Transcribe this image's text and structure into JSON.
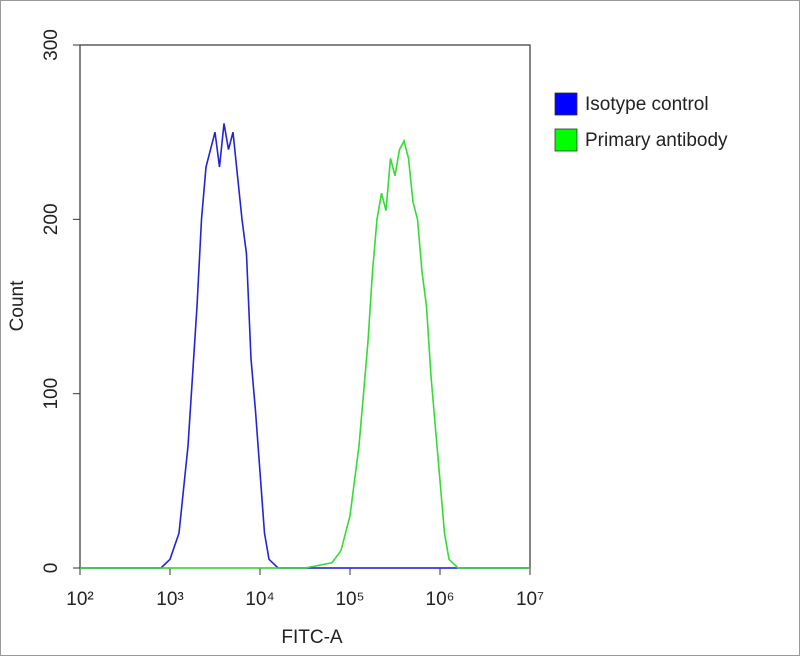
{
  "chart_data": {
    "type": "line",
    "x_label": "FITC-A",
    "y_label": "Count",
    "xscale": "log",
    "xlim": [
      100,
      10000000
    ],
    "xticks": [
      {
        "value": 100,
        "label": "10²"
      },
      {
        "value": 1000,
        "label": "10³"
      },
      {
        "value": 10000,
        "label": "10⁴"
      },
      {
        "value": 100000,
        "label": "10⁵"
      },
      {
        "value": 1000000,
        "label": "10⁶"
      },
      {
        "value": 10000000,
        "label": "10⁷"
      }
    ],
    "ylim": [
      0,
      300
    ],
    "yticks": [
      0,
      100,
      200,
      300
    ],
    "legend": "right",
    "series": [
      {
        "name": "Isotype control",
        "color": "#0000ff",
        "line_color": "#2323d8",
        "x": [
          100,
          316,
          794,
          1000,
          1259,
          1585,
          1995,
          2239,
          2512,
          2818,
          3162,
          3548,
          3981,
          4467,
          5012,
          5623,
          6310,
          7079,
          7943,
          8913,
          10000,
          11220,
          12589,
          15849,
          100000,
          10000000
        ],
        "values": [
          0,
          0,
          0,
          5,
          20,
          70,
          150,
          200,
          230,
          240,
          250,
          230,
          255,
          240,
          250,
          225,
          200,
          180,
          120,
          90,
          55,
          20,
          5,
          0,
          0,
          0
        ]
      },
      {
        "name": "Primary antibody",
        "color": "#00ff00",
        "line_color": "#33dd33",
        "x": [
          100,
          31623,
          63096,
          79433,
          100000,
          125893,
          158489,
          177828,
          199526,
          223872,
          251189,
          281838,
          316228,
          354813,
          398107,
          446684,
          501187,
          562341,
          630957,
          707946,
          794328,
          891251,
          1000000,
          1122018,
          1258925,
          1584893,
          10000000
        ],
        "values": [
          0,
          0,
          3,
          10,
          30,
          70,
          130,
          170,
          200,
          215,
          205,
          235,
          225,
          240,
          245,
          235,
          210,
          200,
          170,
          150,
          110,
          80,
          50,
          20,
          5,
          0,
          0
        ]
      }
    ]
  }
}
